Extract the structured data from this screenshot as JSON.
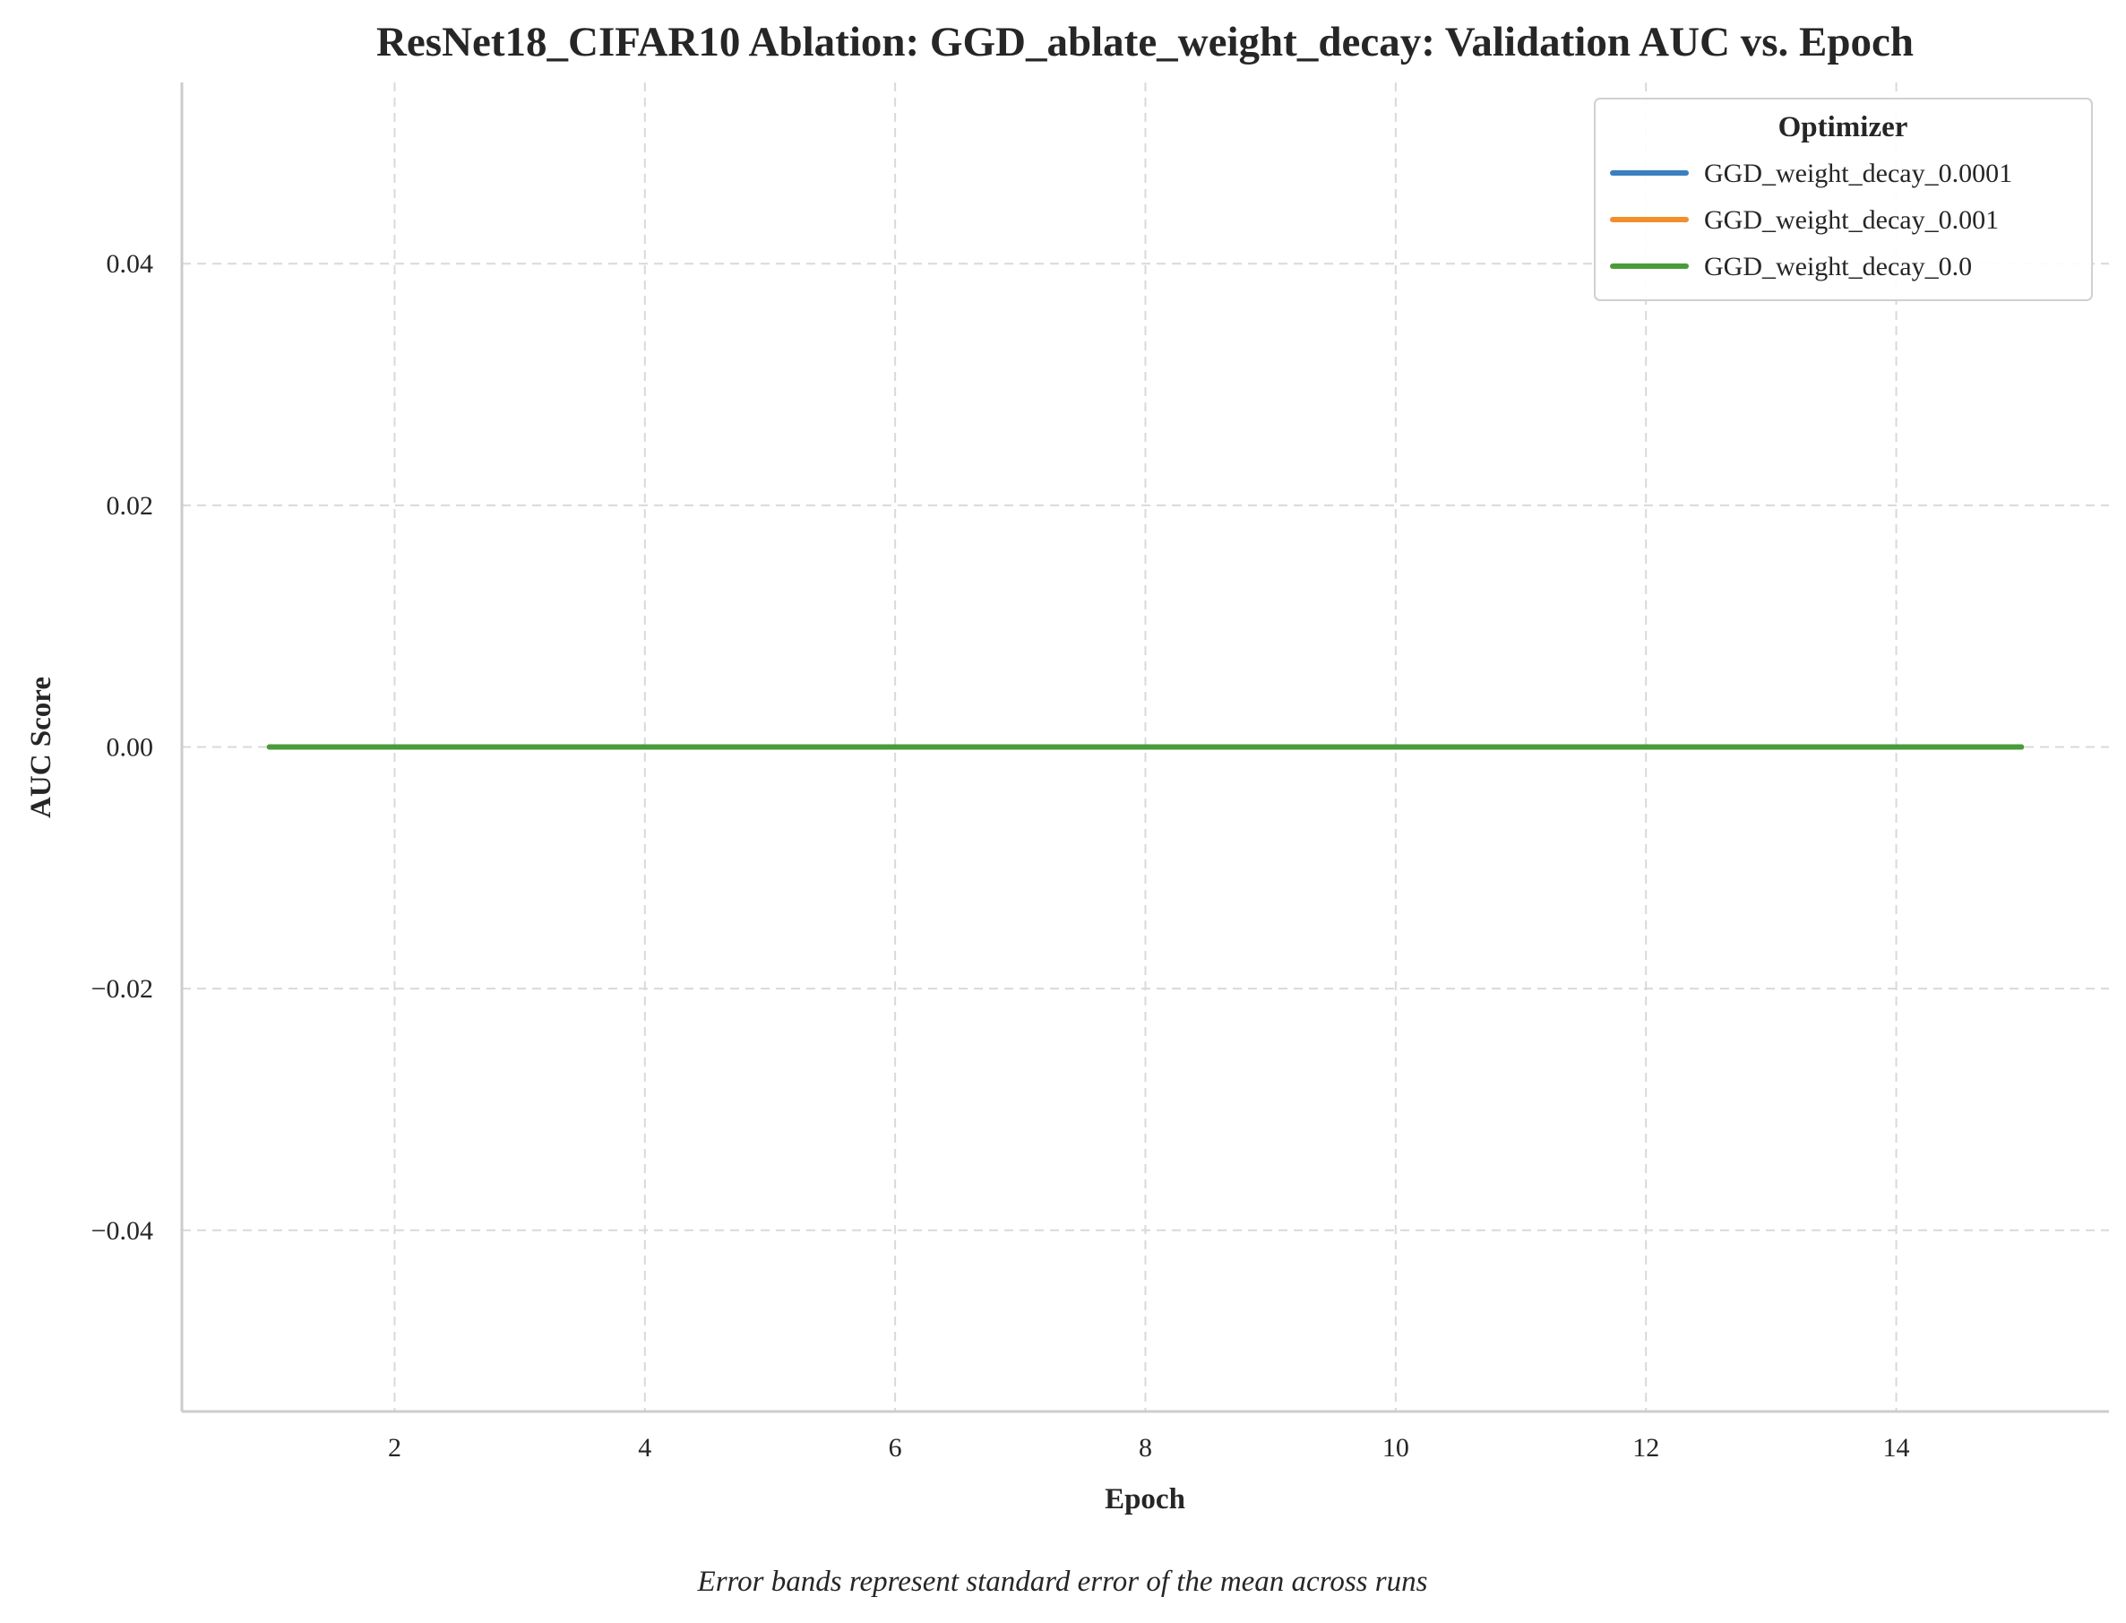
{
  "chart_data": {
    "type": "line",
    "title": "ResNet18_CIFAR10 Ablation: GGD_ablate_weight_decay: Validation AUC vs. Epoch",
    "xlabel": "Epoch",
    "ylabel": "AUC Score",
    "caption": "Error bands represent standard error of the mean across runs",
    "xlim": [
      0.3,
      15.7
    ],
    "ylim": [
      -0.055,
      0.055
    ],
    "xticks": [
      2,
      4,
      6,
      8,
      10,
      12,
      14
    ],
    "xtick_labels": [
      "2",
      "4",
      "6",
      "8",
      "10",
      "12",
      "14"
    ],
    "yticks": [
      -0.04,
      -0.02,
      0.0,
      0.02,
      0.04
    ],
    "ytick_labels": [
      "−0.04",
      "−0.02",
      "0.00",
      "0.02",
      "0.04"
    ],
    "grid": true,
    "legend": {
      "title": "Optimizer",
      "position": "top-right"
    },
    "x": [
      1,
      2,
      3,
      4,
      5,
      6,
      7,
      8,
      9,
      10,
      11,
      12,
      13,
      14,
      15
    ],
    "series": [
      {
        "name": "GGD_weight_decay_0.0001",
        "color": "#3a7fbf",
        "values": [
          0,
          0,
          0,
          0,
          0,
          0,
          0,
          0,
          0,
          0,
          0,
          0,
          0,
          0,
          0
        ]
      },
      {
        "name": "GGD_weight_decay_0.001",
        "color": "#f28e2b",
        "values": [
          0,
          0,
          0,
          0,
          0,
          0,
          0,
          0,
          0,
          0,
          0,
          0,
          0,
          0,
          0
        ]
      },
      {
        "name": "GGD_weight_decay_0.0",
        "color": "#4a9c3a",
        "values": [
          0,
          0,
          0,
          0,
          0,
          0,
          0,
          0,
          0,
          0,
          0,
          0,
          0,
          0,
          0
        ]
      }
    ]
  }
}
